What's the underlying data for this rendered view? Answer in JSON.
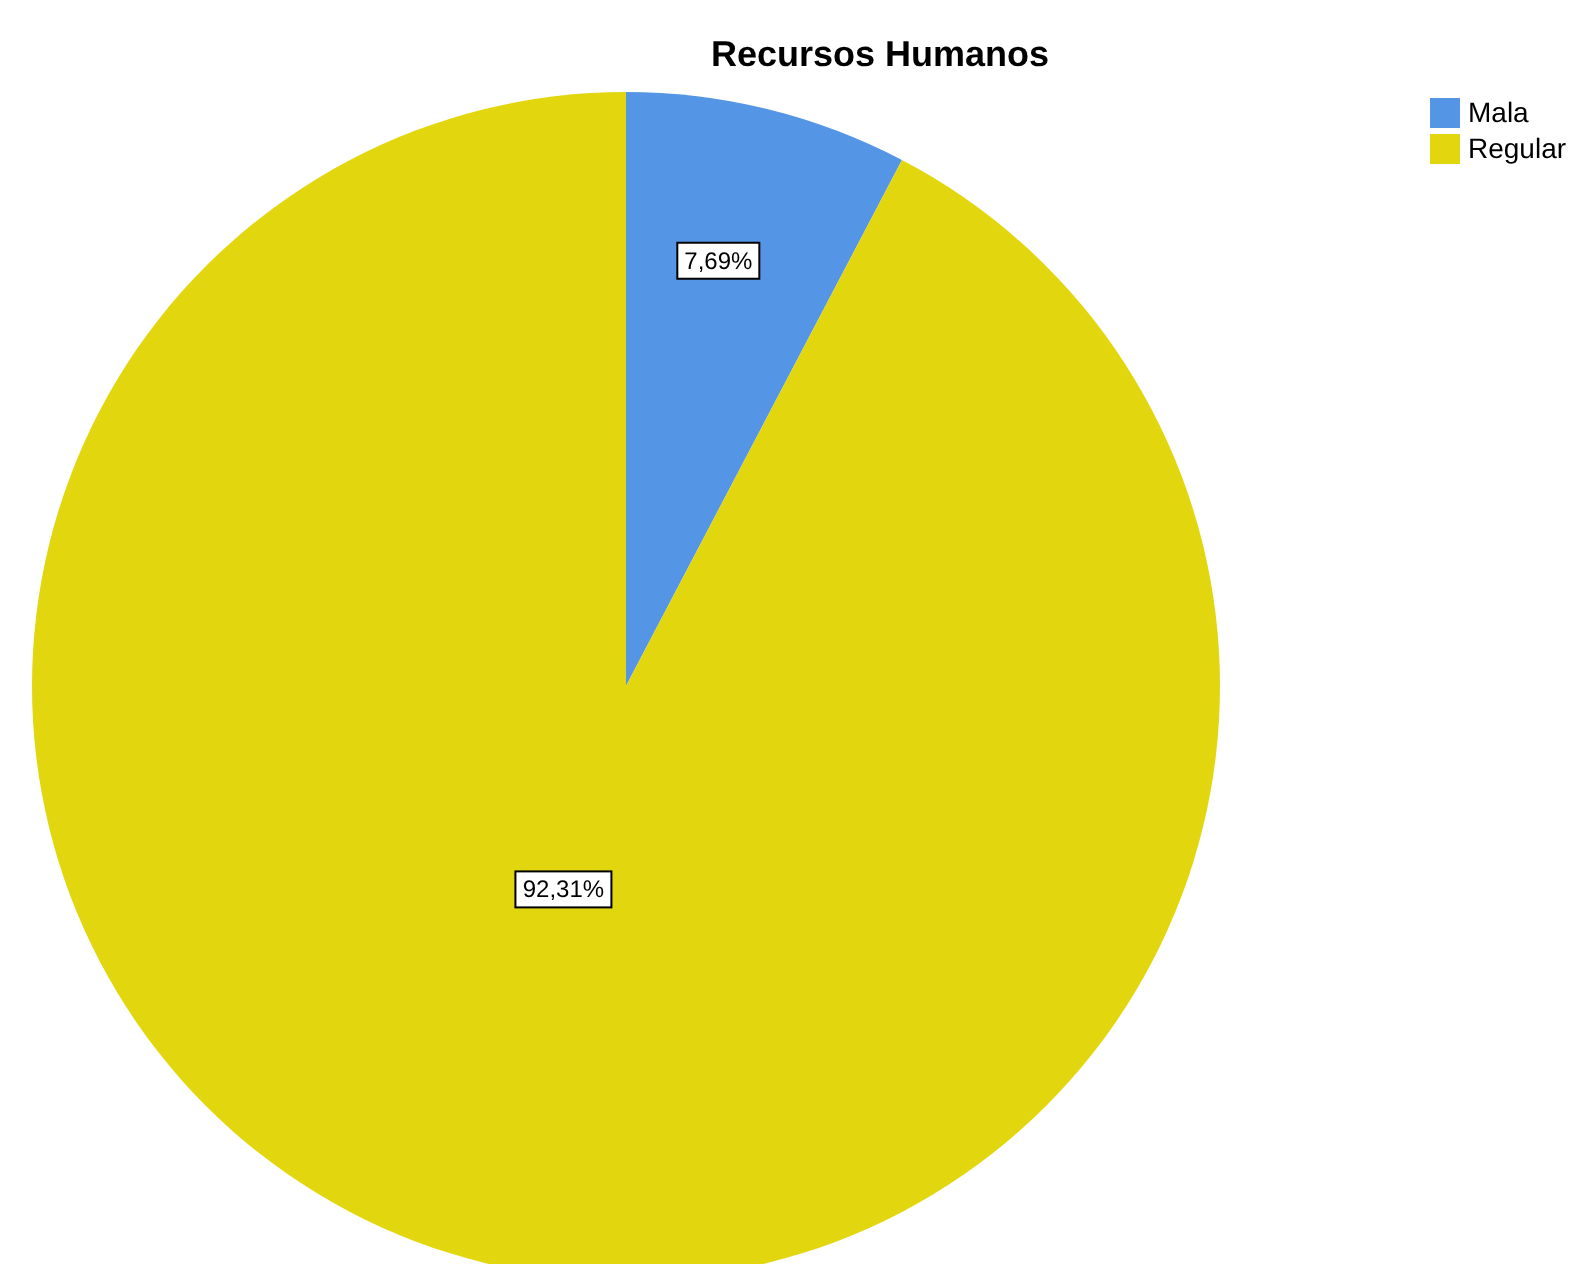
{
  "chart_data": {
    "type": "pie",
    "title": "Recursos Humanos",
    "categories": [
      "Mala",
      "Regular"
    ],
    "values": [
      7.69,
      92.31
    ],
    "colors": [
      "#5595e5",
      "#e2d70e"
    ],
    "value_labels": [
      "7,69%",
      "92,31%"
    ],
    "legend": "top right"
  }
}
